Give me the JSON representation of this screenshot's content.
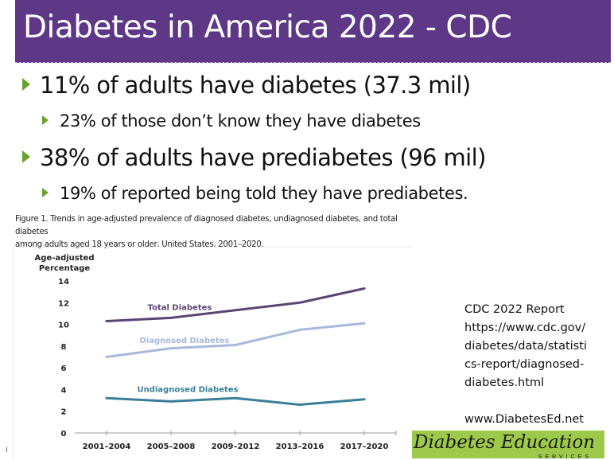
{
  "slide": {
    "title": "Diabetes in America 2022 - CDC",
    "bullets": [
      {
        "level": 1,
        "text": "11% of adults have diabetes (37.3 mil)"
      },
      {
        "level": 2,
        "text": "23% of those don’t know they have diabetes"
      },
      {
        "level": 1,
        "text": "38% of adults have prediabetes (96 mil)"
      },
      {
        "level": 2,
        "text": "19% of reported being told they have prediabetes."
      }
    ],
    "bullet_icon": "triangle-right-icon",
    "accent_color": "#5e3787",
    "bullet_color": "#6aa22c"
  },
  "figure": {
    "caption_line1": "Figure 1. Trends in age-adjusted prevalence of diagnosed diabetes, undiagnosed diabetes, and total diabetes",
    "caption_line2": "among adults aged 18 years or older, United States, 2001–2020."
  },
  "source": {
    "lines": [
      "CDC 2022 Report",
      "https://www.cdc.gov/",
      "diabetes/data/statisti",
      "cs-report/diagnosed-",
      "diabetes.html"
    ],
    "website": "www.DiabetesEd.net"
  },
  "logo": {
    "main": "Diabetes Education",
    "sub": "SERVICES",
    "color": "#9dc94a"
  },
  "chart_data": {
    "type": "line",
    "title": "",
    "ylabel_line1": "Age-adjusted",
    "ylabel_line2": "Percentage",
    "xlabel": "",
    "categories": [
      "2001–2004",
      "2005–2008",
      "2009–2012",
      "2013–2016",
      "2017–2020"
    ],
    "ylim": [
      0,
      14
    ],
    "yticks": [
      "0",
      "2",
      "4",
      "6",
      "8",
      "10",
      "12",
      "14"
    ],
    "grid": false,
    "series": [
      {
        "name": "Total Diabetes",
        "color": "#5b4474",
        "values": [
          10.3,
          10.6,
          11.3,
          12.0,
          13.3
        ]
      },
      {
        "name": "Diagnosed Diabetes",
        "color": "#a9b7dc",
        "values": [
          7.0,
          7.8,
          8.1,
          9.5,
          10.1
        ]
      },
      {
        "name": "Undiagnosed Diabetes",
        "color": "#3a7f97",
        "values": [
          3.2,
          2.9,
          3.2,
          2.6,
          3.1
        ]
      }
    ]
  }
}
